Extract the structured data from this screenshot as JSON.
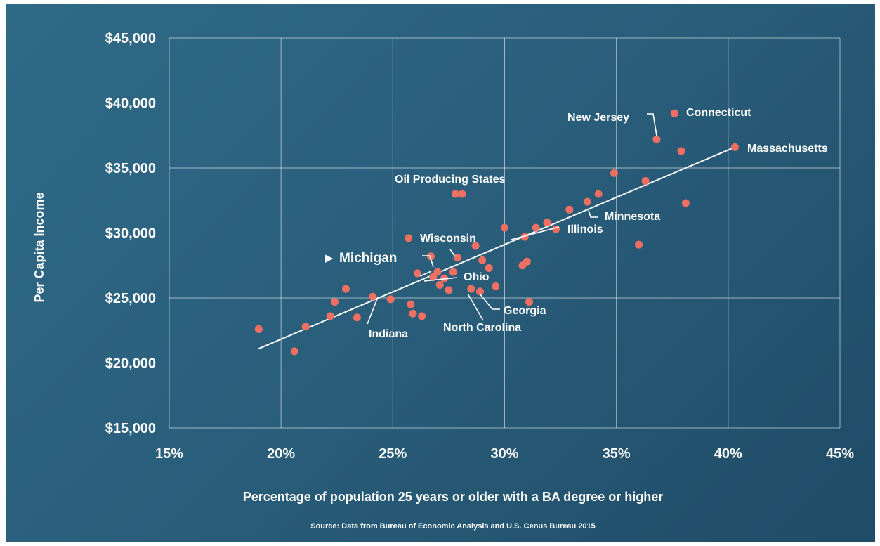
{
  "colors": {
    "background": "#2a5f7c",
    "grid": "#ffffff",
    "point": "#ef6f63",
    "trendline": "#ffffff",
    "text": "#ffffff"
  },
  "chart_data": {
    "type": "scatter",
    "xlabel": "Percentage of population 25 years or older with a BA degree or higher",
    "ylabel": "Per Capita Income",
    "source": "Source: Data from Bureau of Economic Analysis and U.S. Cenus Bureau 2015",
    "xlim": [
      15,
      45
    ],
    "ylim": [
      15000,
      45000
    ],
    "x_ticks": [
      15,
      20,
      25,
      30,
      35,
      40,
      45
    ],
    "x_tick_labels": [
      "15%",
      "20%",
      "25%",
      "30%",
      "35%",
      "40%",
      "45%"
    ],
    "y_ticks": [
      15000,
      20000,
      25000,
      30000,
      35000,
      40000,
      45000
    ],
    "y_tick_labels": [
      "$15,000",
      "$20,000",
      "$25,000",
      "$30,000",
      "$35,000",
      "$40,000",
      "$45,000"
    ],
    "grid": true,
    "trendline": {
      "x": [
        19.0,
        40.3
      ],
      "y": [
        21100,
        36600
      ]
    },
    "points": [
      {
        "x": 19.0,
        "y": 22600
      },
      {
        "x": 20.6,
        "y": 20900
      },
      {
        "x": 21.1,
        "y": 22800
      },
      {
        "x": 22.2,
        "y": 23600
      },
      {
        "x": 22.4,
        "y": 24700
      },
      {
        "x": 22.9,
        "y": 25700
      },
      {
        "x": 23.4,
        "y": 23500
      },
      {
        "x": 24.1,
        "y": 25100
      },
      {
        "x": 24.9,
        "y": 24900
      },
      {
        "x": 25.7,
        "y": 29600
      },
      {
        "x": 25.8,
        "y": 24500
      },
      {
        "x": 25.9,
        "y": 23800
      },
      {
        "x": 26.1,
        "y": 26900
      },
      {
        "x": 26.3,
        "y": 23600
      },
      {
        "x": 26.7,
        "y": 28200
      },
      {
        "x": 26.8,
        "y": 26600
      },
      {
        "x": 27.0,
        "y": 27000
      },
      {
        "x": 27.1,
        "y": 26000
      },
      {
        "x": 27.3,
        "y": 26500
      },
      {
        "x": 27.5,
        "y": 25600
      },
      {
        "x": 27.7,
        "y": 27000
      },
      {
        "x": 27.8,
        "y": 33000
      },
      {
        "x": 27.9,
        "y": 28100
      },
      {
        "x": 28.1,
        "y": 33000
      },
      {
        "x": 28.5,
        "y": 25700
      },
      {
        "x": 28.7,
        "y": 29000
      },
      {
        "x": 28.9,
        "y": 25500
      },
      {
        "x": 29.0,
        "y": 27900
      },
      {
        "x": 29.3,
        "y": 27300
      },
      {
        "x": 29.6,
        "y": 25900
      },
      {
        "x": 30.0,
        "y": 30400
      },
      {
        "x": 30.8,
        "y": 27500
      },
      {
        "x": 30.9,
        "y": 29700
      },
      {
        "x": 31.0,
        "y": 27800
      },
      {
        "x": 31.1,
        "y": 24700
      },
      {
        "x": 31.4,
        "y": 30400
      },
      {
        "x": 31.9,
        "y": 30800
      },
      {
        "x": 32.3,
        "y": 30300
      },
      {
        "x": 32.9,
        "y": 31800
      },
      {
        "x": 33.7,
        "y": 32400
      },
      {
        "x": 34.2,
        "y": 33000
      },
      {
        "x": 34.9,
        "y": 34600
      },
      {
        "x": 36.0,
        "y": 29100
      },
      {
        "x": 36.3,
        "y": 34000
      },
      {
        "x": 36.8,
        "y": 37200
      },
      {
        "x": 37.6,
        "y": 39200
      },
      {
        "x": 37.9,
        "y": 36300
      },
      {
        "x": 38.1,
        "y": 32300
      },
      {
        "x": 40.3,
        "y": 36600
      }
    ],
    "annotations": [
      {
        "text": "Connecticut"
      },
      {
        "text": "New Jersey"
      },
      {
        "text": "Massachusetts"
      },
      {
        "text": "Oil Producing States"
      },
      {
        "text": "Minnesota"
      },
      {
        "text": "Illinois"
      },
      {
        "text": "Wisconsin"
      },
      {
        "text": "Michigan",
        "marker": "▶"
      },
      {
        "text": "Ohio"
      },
      {
        "text": "Georgia"
      },
      {
        "text": "North Carolina"
      },
      {
        "text": "Indiana"
      }
    ]
  }
}
